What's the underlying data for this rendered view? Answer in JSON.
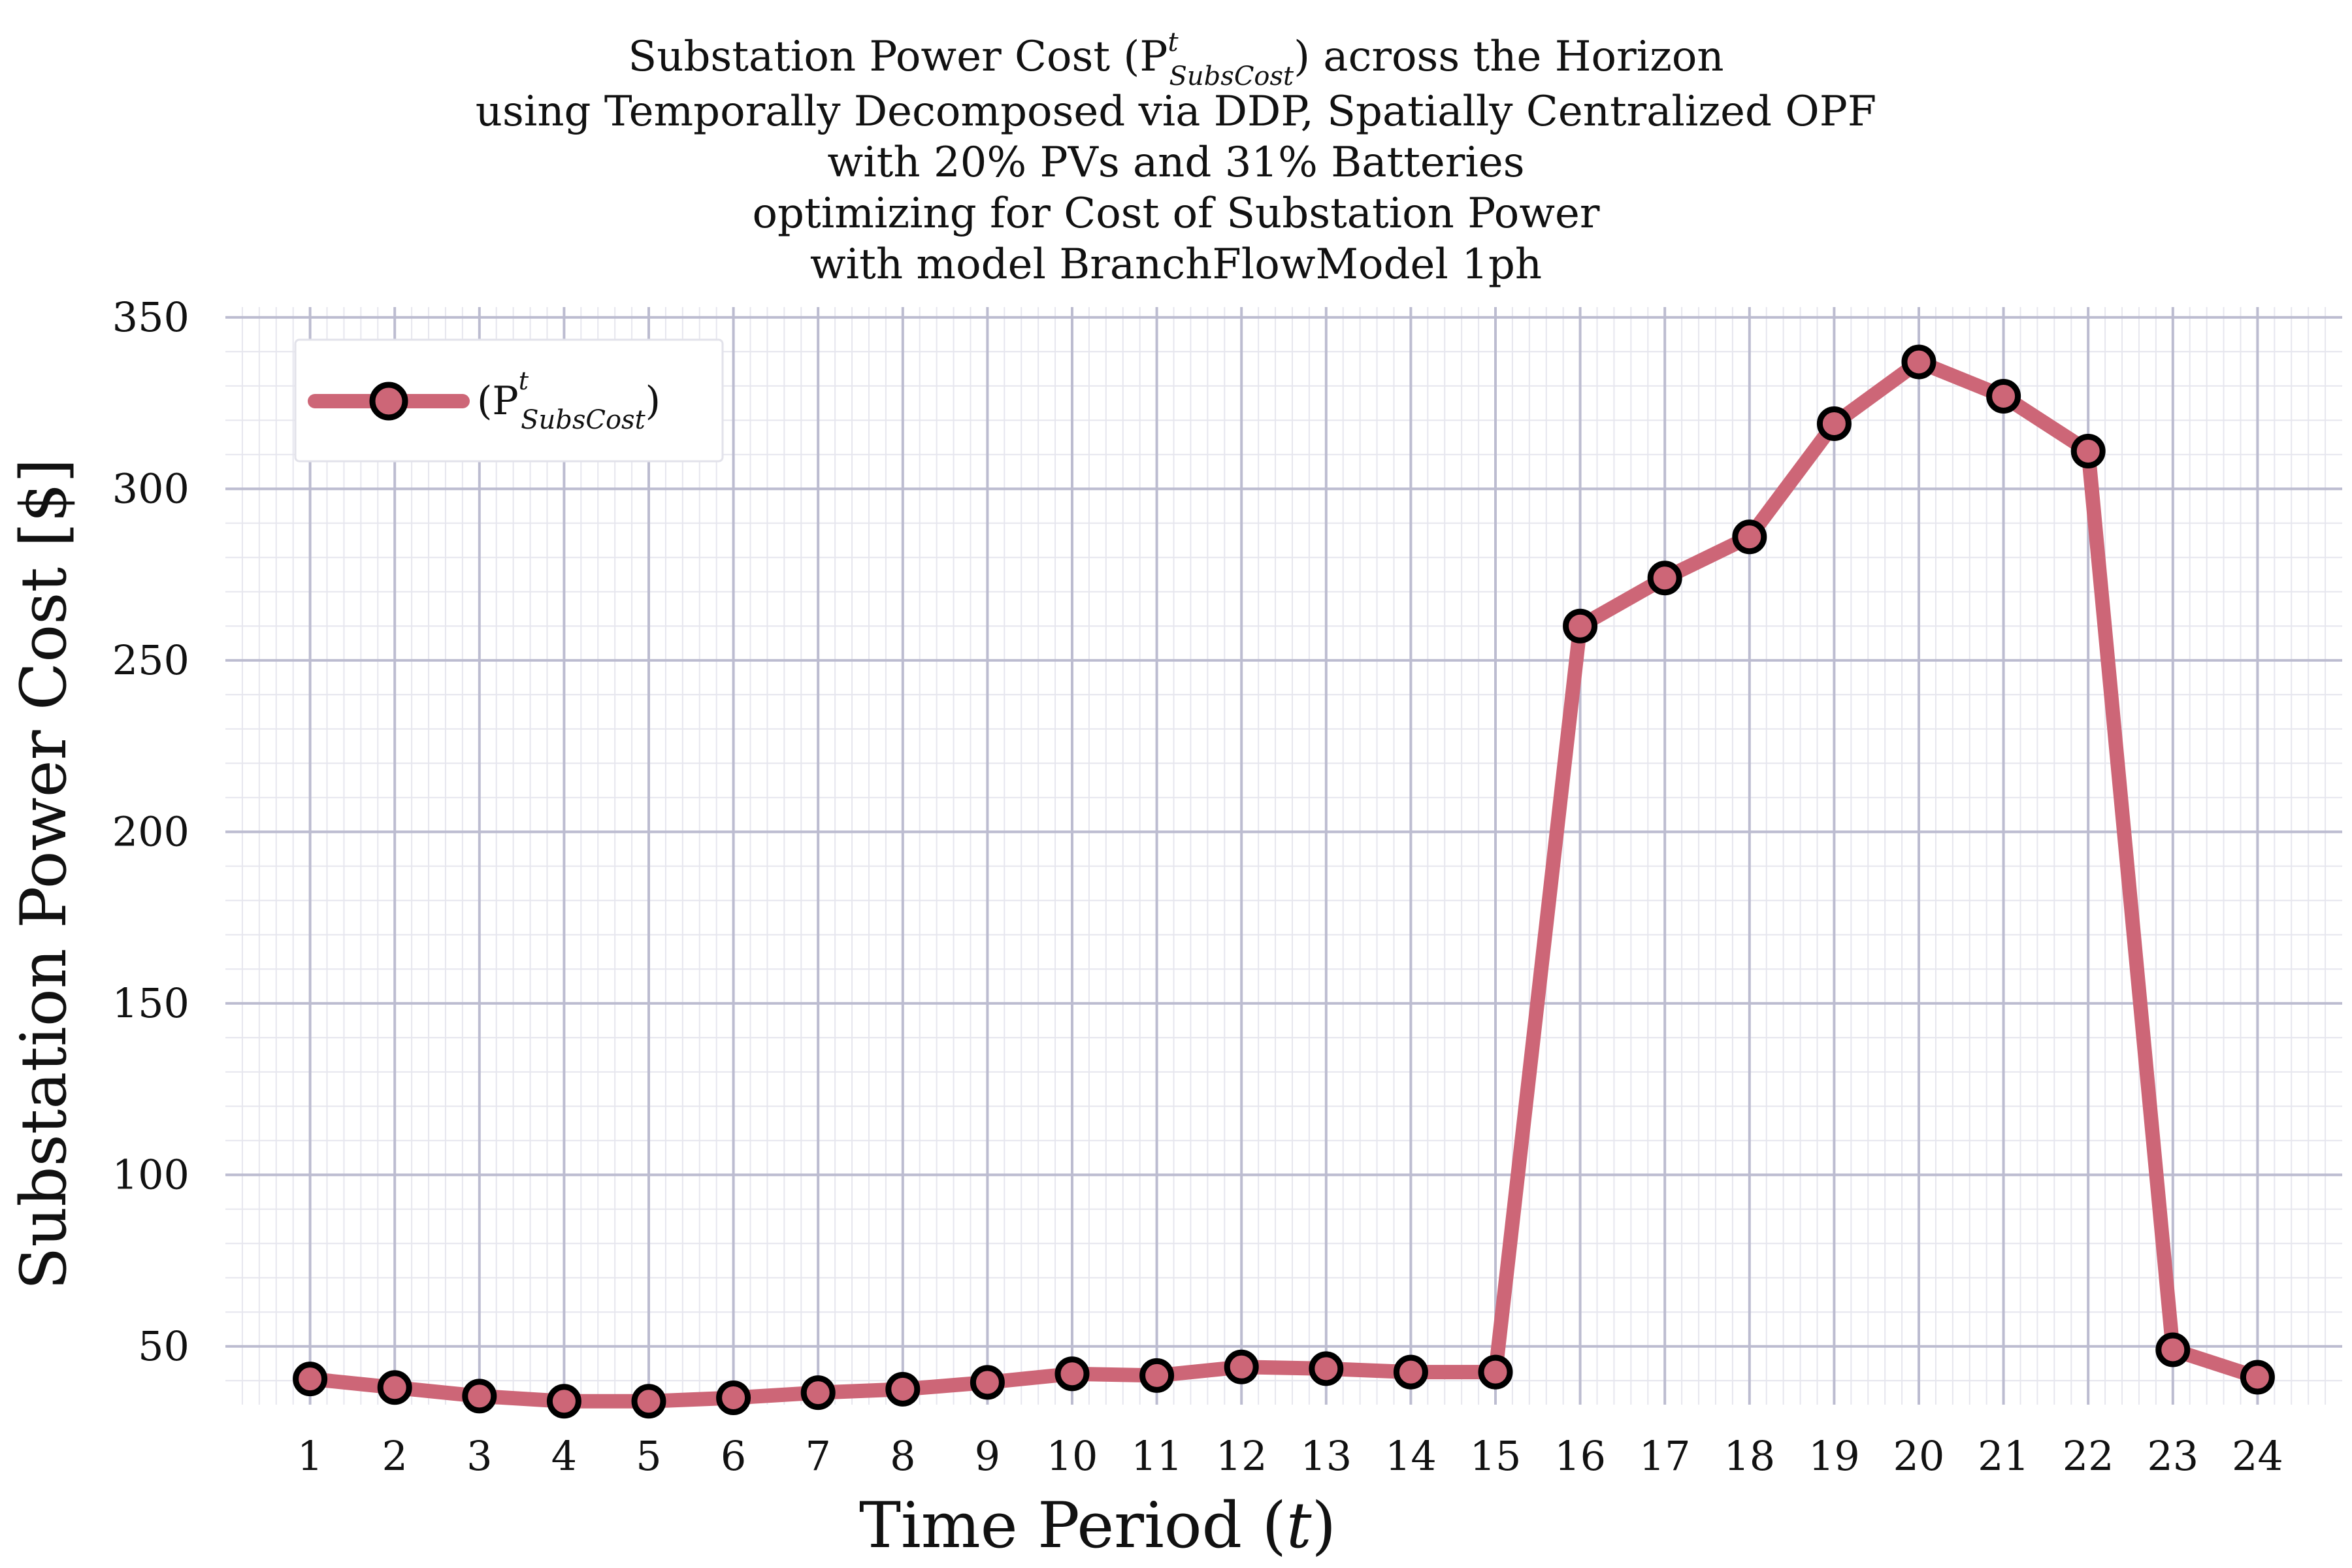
{
  "chart_data": {
    "type": "line",
    "title_lines": [
      "Substation Power Cost (P",
      "using Temporally Decomposed via DDP, Spatially Centralized OPF",
      "with 20% PVs and 31% Batteries",
      "optimizing for Cost of Substation Power",
      "with model BranchFlowModel 1ph"
    ],
    "title_symbol_sup": "t",
    "title_symbol_sub": "SubsCost",
    "title_suffix": ") across the Horizon",
    "xlabel": "Time Period (",
    "xlabel_var": "t",
    "xlabel_close": ")",
    "ylabel": "Substation Power Cost [$]",
    "x": [
      1,
      2,
      3,
      4,
      5,
      6,
      7,
      8,
      9,
      10,
      11,
      12,
      13,
      14,
      15,
      16,
      17,
      18,
      19,
      20,
      21,
      22,
      23,
      24
    ],
    "x_tick_labels": [
      "1",
      "2",
      "3",
      "4",
      "5",
      "6",
      "7",
      "8",
      "9",
      "10",
      "11",
      "12",
      "13",
      "14",
      "15",
      "16",
      "17",
      "18",
      "19",
      "20",
      "21",
      "22",
      "23",
      "24"
    ],
    "y_ticks": [
      50,
      100,
      150,
      200,
      250,
      300,
      350
    ],
    "y_tick_labels": [
      "50",
      "100",
      "150",
      "200",
      "250",
      "300",
      "350"
    ],
    "xlim": [
      0,
      25.0
    ],
    "ylim": [
      33,
      353
    ],
    "grid": true,
    "legend_placement": "top-left",
    "series": [
      {
        "legend_open": "(P",
        "legend_sup": "t",
        "legend_sub": "SubsCost",
        "legend_close": ")",
        "color": "#cd6677",
        "marker_edge_color": "#000000",
        "values": [
          40.5,
          38,
          35.5,
          34,
          34,
          35,
          36.5,
          37.5,
          39.5,
          42,
          41.5,
          44,
          43.5,
          42.5,
          42.5,
          260,
          274,
          286,
          319,
          337,
          327,
          311,
          49,
          41
        ]
      }
    ]
  }
}
